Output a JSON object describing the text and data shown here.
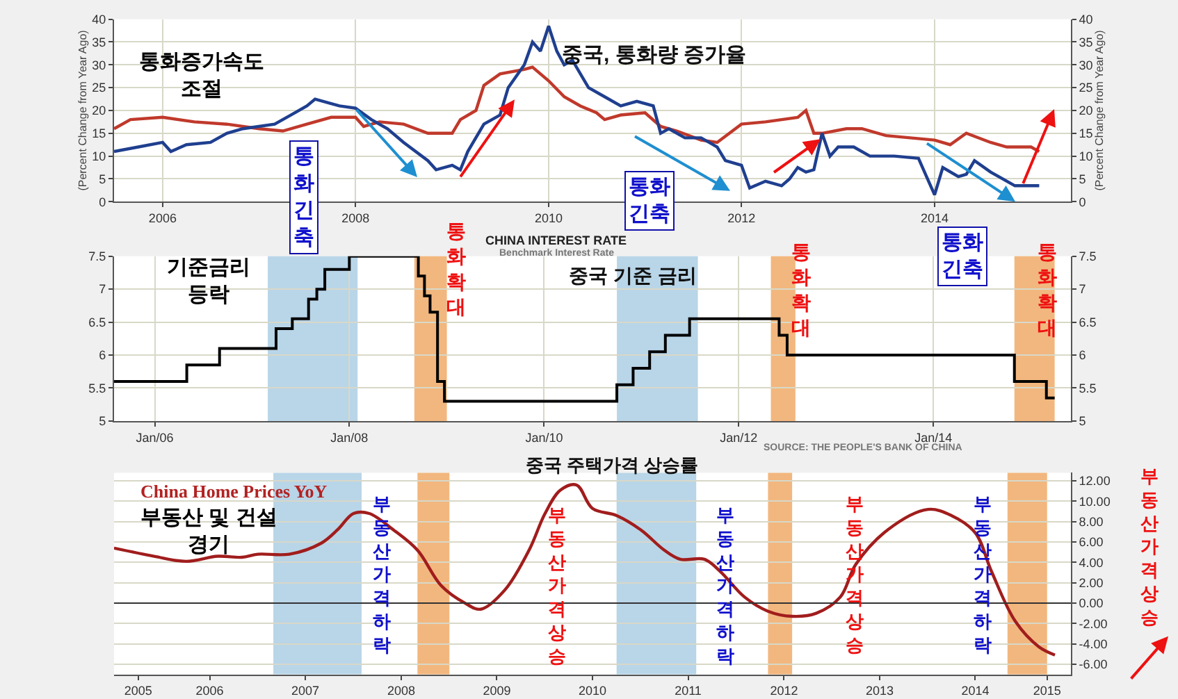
{
  "chart_data": [
    {
      "type": "line",
      "title": "중국, 통화량 증가율",
      "ylabel": "(Percent Change from Year Ago)",
      "y2label": "(Percent Change from Year Ago)",
      "annotations": [
        "통화증가속도\n조절",
        "통\n화\n긴\n축",
        "통화\n긴축"
      ],
      "series": [
        {
          "color": "#c0392b",
          "x": [
            "2005-07",
            "2005-09",
            "2006-01",
            "2006-05",
            "2006-09",
            "2007-01",
            "2007-04",
            "2007-07",
            "2007-10",
            "2008-01",
            "2008-02",
            "2008-04",
            "2008-07",
            "2008-10",
            "2009-01",
            "2009-02",
            "2009-04",
            "2009-05",
            "2009-07",
            "2009-10",
            "2009-11",
            "2010-01",
            "2010-03",
            "2010-05",
            "2010-07",
            "2010-08",
            "2010-10",
            "2011-01",
            "2011-03",
            "2011-05",
            "2011-08",
            "2011-10",
            "2012-01",
            "2012-04",
            "2012-08",
            "2012-09",
            "2012-10",
            "2012-11",
            "2013-02",
            "2013-04",
            "2013-07",
            "2013-10",
            "2014-01",
            "2014-03",
            "2014-05",
            "2014-08",
            "2014-10",
            "2015-01",
            "2015-02"
          ],
          "values": [
            16,
            18,
            18.5,
            17.5,
            17,
            16,
            15.5,
            17,
            18.5,
            18.5,
            16.5,
            17.5,
            17,
            15,
            15,
            18,
            20,
            25.5,
            28,
            29,
            29.5,
            26.5,
            23,
            21,
            19.5,
            18,
            19,
            19.5,
            16.5,
            15.5,
            13.5,
            13,
            17,
            17.5,
            18.5,
            20,
            15,
            15,
            16,
            16,
            14.5,
            14,
            13.5,
            12.5,
            15,
            13,
            12,
            12,
            11
          ]
        },
        {
          "color": "#1f3f8f",
          "x": [
            "2005-07",
            "2005-10",
            "2006-01",
            "2006-02",
            "2006-04",
            "2006-07",
            "2006-09",
            "2006-11",
            "2007-03",
            "2007-05",
            "2007-07",
            "2007-08",
            "2007-10",
            "2007-11",
            "2008-01",
            "2008-03",
            "2008-05",
            "2008-07",
            "2008-10",
            "2008-11",
            "2009-01",
            "2009-02",
            "2009-03",
            "2009-05",
            "2009-07",
            "2009-08",
            "2009-10",
            "2009-11",
            "2009-12",
            "2010-01",
            "2010-02",
            "2010-03",
            "2010-04",
            "2010-06",
            "2010-08",
            "2010-10",
            "2010-12",
            "2011-02",
            "2011-03",
            "2011-04",
            "2011-06",
            "2011-08",
            "2011-10",
            "2011-11",
            "2012-01",
            "2012-02",
            "2012-04",
            "2012-06",
            "2012-07",
            "2012-08",
            "2012-09",
            "2012-10",
            "2012-11",
            "2012-12",
            "2013-01",
            "2013-03",
            "2013-05",
            "2013-08",
            "2013-11",
            "2014-01",
            "2014-02",
            "2014-04",
            "2014-05",
            "2014-06",
            "2014-08",
            "2014-11",
            "2015-02"
          ],
          "values": [
            11,
            12,
            13,
            11,
            12.5,
            13,
            15,
            16,
            17,
            19,
            21,
            22.5,
            21.5,
            21,
            20.5,
            18,
            16,
            13,
            9,
            7,
            8,
            7,
            11,
            17,
            19,
            25,
            30,
            35,
            33,
            38.5,
            33,
            30,
            31,
            25,
            23,
            21,
            22,
            21,
            15,
            16,
            14,
            14,
            12,
            9,
            8,
            3,
            4.5,
            3.5,
            5,
            7.5,
            6.5,
            7,
            15,
            10,
            12,
            12,
            10,
            10,
            9.5,
            1.5,
            7.5,
            5.5,
            6,
            9,
            6.5,
            3.5,
            3.5
          ]
        }
      ],
      "xlim": [
        "2005-07",
        "2015-06"
      ],
      "xticks": [
        "2006",
        "2008",
        "2010",
        "2012",
        "2014"
      ],
      "ylim": [
        0,
        40
      ],
      "yticks": [
        0,
        5,
        10,
        15,
        20,
        25,
        30,
        35,
        40
      ],
      "y2lim": [
        0,
        40
      ],
      "y2ticks": [
        0,
        5,
        10,
        15,
        20,
        25,
        30,
        35,
        40
      ],
      "grid": true,
      "marker": "none",
      "line_style": "solid"
    },
    {
      "type": "step",
      "title": "중국 기준 금리",
      "subtitle": "CHINA INTEREST RATE",
      "annotations": [
        "기준금리\n등락",
        "통\n화\n확\n대",
        "통\n화\n확\n대",
        "통화\n긴축",
        "통\n화\n확\n대",
        "Benchmark Interest Rate"
      ],
      "x": [
        "2005-08",
        "2006-05",
        "2006-09",
        "2007-04",
        "2007-06",
        "2007-08",
        "2007-09",
        "2007-10",
        "2008-01",
        "2008-09-16",
        "2008-10-09",
        "2008-10-30",
        "2008-11-27",
        "2008-12-23",
        "2010-10",
        "2010-12",
        "2011-02",
        "2011-04",
        "2011-07",
        "2012-06",
        "2012-07",
        "2014-11",
        "2015-03",
        "2015-04"
      ],
      "series": [
        {
          "color": "#000000",
          "values": [
            5.6,
            5.85,
            6.1,
            6.4,
            6.55,
            6.85,
            7.0,
            7.3,
            7.5,
            7.2,
            6.9,
            6.65,
            5.6,
            5.3,
            5.55,
            5.8,
            6.05,
            6.3,
            6.55,
            6.3,
            6.0,
            5.6,
            5.35,
            5.35
          ]
        }
      ],
      "xlim": [
        "2005-08",
        "2015-06"
      ],
      "xticks": [
        {
          "value": "2006-01",
          "label": "Jan/06"
        },
        {
          "value": "2008-01",
          "label": "Jan/08"
        },
        {
          "value": "2010-01",
          "label": "Jan/10"
        },
        {
          "value": "2012-01",
          "label": "Jan/12"
        },
        {
          "value": "2014-01",
          "label": "Jan/14"
        }
      ],
      "ylim": [
        5,
        7.5
      ],
      "yticks": [
        5,
        5.5,
        6,
        6.5,
        7,
        7.5
      ],
      "y2lim": [
        5,
        7.5
      ],
      "y2ticks": [
        5,
        5.5,
        6,
        6.5,
        7,
        7.5
      ],
      "bands": [
        {
          "axis": "x",
          "from": "2007-03",
          "to": "2008-02",
          "color": "#b9d5e8"
        },
        {
          "axis": "x",
          "from": "2008-09",
          "to": "2009-01",
          "color": "#f2b77e"
        },
        {
          "axis": "x",
          "from": "2010-10",
          "to": "2011-08",
          "color": "#b9d5e8"
        },
        {
          "axis": "x",
          "from": "2012-05",
          "to": "2012-08",
          "color": "#f2b77e"
        },
        {
          "axis": "x",
          "from": "2014-11",
          "to": "2015-04",
          "color": "#f2b77e"
        }
      ],
      "grid": true,
      "marker": "none",
      "line_style": "solid"
    },
    {
      "type": "line",
      "title": "중국 주택가격 상승률",
      "subtitle": "China Home Prices YoY",
      "annotations": [
        "부동산 및 건설\n경기",
        "부\n동\n산\n가\n격\n하\n락",
        "부\n동\n산\n가\n격\n상\n승",
        "부\n동\n산\n가\n격\n하\n락",
        "부\n동\n산\n가\n격\n상\n승",
        "부\n동\n산\n가\n격\n하\n락",
        "부\n동\n산\n가\n격\n상\n승",
        "SOURCE: THE PEOPLE'S BANK OF CHINA"
      ],
      "series": [
        {
          "color": "#a11d1d",
          "axis": "y2",
          "x": [
            "2005-07",
            "2005-12",
            "2006-04",
            "2006-08",
            "2006-11",
            "2007-01",
            "2007-05",
            "2007-09",
            "2007-11",
            "2008-01",
            "2008-03",
            "2008-06",
            "2008-09",
            "2008-12",
            "2009-03",
            "2009-05",
            "2009-08",
            "2009-11",
            "2010-01",
            "2010-03",
            "2010-05",
            "2010-07",
            "2010-10",
            "2011-01",
            "2011-04",
            "2011-06",
            "2011-09",
            "2011-11",
            "2012-02",
            "2012-05",
            "2012-08",
            "2012-11",
            "2013-02",
            "2013-04",
            "2013-08",
            "2014-01",
            "2014-04",
            "2014-07",
            "2014-09",
            "2014-12",
            "2015-03",
            "2015-05"
          ],
          "values": [
            5.4,
            4.6,
            4.1,
            4.6,
            4.5,
            4.8,
            4.8,
            5.9,
            7.2,
            8.8,
            8.8,
            7.2,
            5.2,
            1.7,
            0,
            -0.6,
            1.3,
            5.2,
            8.8,
            11.1,
            11.6,
            9.3,
            8.6,
            7.2,
            5.2,
            4.3,
            4.3,
            3.1,
            0.6,
            -0.8,
            -1.3,
            -1.0,
            0.6,
            3.8,
            7.2,
            9.2,
            8.6,
            6.9,
            3.1,
            -1.8,
            -4.3,
            -5.1
          ]
        }
      ],
      "xlim": [
        "2005-07",
        "2015-07"
      ],
      "xticks": [
        {
          "value": "2005-10",
          "label": "2005"
        },
        {
          "value": "2006-07",
          "label": "2006"
        },
        {
          "value": "2007-07",
          "label": "2007"
        },
        {
          "value": "2008-07",
          "label": "2008"
        },
        {
          "value": "2009-07",
          "label": "2009"
        },
        {
          "value": "2010-07",
          "label": "2010"
        },
        {
          "value": "2011-07",
          "label": "2011"
        },
        {
          "value": "2012-07",
          "label": "2012"
        },
        {
          "value": "2013-07",
          "label": "2013"
        },
        {
          "value": "2014-07",
          "label": "2014"
        },
        {
          "value": "2015-04",
          "label": "2015"
        }
      ],
      "y2lim": [
        -7,
        12.8
      ],
      "y2ticks": [
        {
          "value": 12,
          "label": "12.00"
        },
        {
          "value": 10,
          "label": "10.00"
        },
        {
          "value": 8,
          "label": "8.00"
        },
        {
          "value": 6,
          "label": "6.00"
        },
        {
          "value": 4,
          "label": "4.00"
        },
        {
          "value": 2,
          "label": "2.00"
        },
        {
          "value": 0,
          "label": "0.00"
        },
        {
          "value": -2,
          "label": "-2.00"
        },
        {
          "value": -4,
          "label": "-4.00"
        },
        {
          "value": -6,
          "label": "-6.00"
        }
      ],
      "ref_lines": [
        {
          "axis": "y2",
          "value": 0,
          "color": "#333333"
        }
      ],
      "bands": [
        {
          "axis": "x",
          "from": "2007-03",
          "to": "2008-02",
          "color": "#b9d5e8"
        },
        {
          "axis": "x",
          "from": "2008-09",
          "to": "2009-01",
          "color": "#f2b77e"
        },
        {
          "axis": "x",
          "from": "2010-10",
          "to": "2011-08",
          "color": "#b9d5e8"
        },
        {
          "axis": "x",
          "from": "2012-05",
          "to": "2012-08",
          "color": "#f2b77e"
        },
        {
          "axis": "x",
          "from": "2014-11",
          "to": "2015-04",
          "color": "#f2b77e"
        }
      ],
      "grid": "y",
      "marker": "none",
      "line_style": "solid"
    }
  ]
}
